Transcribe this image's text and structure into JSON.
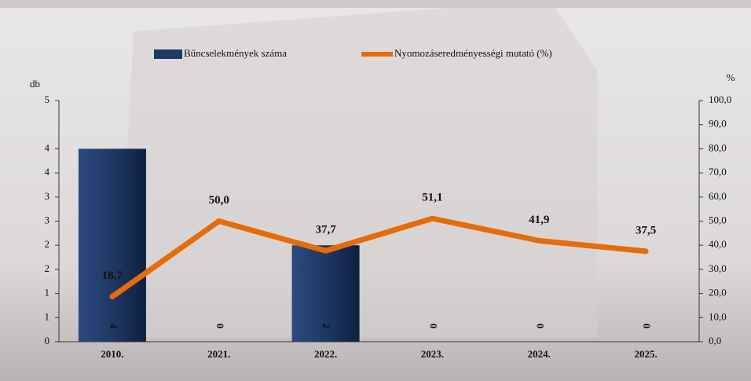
{
  "chart_data": {
    "type": "bar_line",
    "categories": [
      "2010.",
      "2021.",
      "2022.",
      "2023.",
      "2024.",
      "2025."
    ],
    "y_label": "db",
    "y2_label": "%",
    "ylim": [
      0,
      5
    ],
    "yticks": [
      0,
      {
        "value": 0.5,
        "label": "1"
      },
      {
        "value": 1,
        "label": "1"
      },
      {
        "value": 1.5,
        "label": "2"
      },
      {
        "value": 2,
        "label": "2"
      },
      {
        "value": 2.5,
        "label": "3"
      },
      {
        "value": 3,
        "label": "3"
      },
      {
        "value": 3.5,
        "label": "4"
      },
      {
        "value": 4,
        "label": "4"
      },
      5
    ],
    "y2lim": [
      0,
      100
    ],
    "y2ticks": [
      {
        "value": 0,
        "label": "0,0"
      },
      {
        "value": 10,
        "label": "10,0"
      },
      {
        "value": 20,
        "label": "20,0"
      },
      {
        "value": 30,
        "label": "30,0"
      },
      {
        "value": 40,
        "label": "40,0"
      },
      {
        "value": 50,
        "label": "50,0"
      },
      {
        "value": 60,
        "label": "60,0"
      },
      {
        "value": 70,
        "label": "70,0"
      },
      {
        "value": 80,
        "label": "80,0"
      },
      {
        "value": 90,
        "label": "90,0"
      },
      {
        "value": 100,
        "label": "100,0"
      }
    ],
    "series": [
      {
        "name": "Bűncselekmények száma",
        "type": "bar",
        "color": "#1f3864",
        "values": [
          4,
          0,
          2,
          0,
          0,
          0
        ]
      },
      {
        "name": "Nyomozáseredményességi mutató (%)",
        "type": "line",
        "axis": "y2",
        "color": "#e46c0a",
        "values": [
          18.7,
          50.0,
          37.7,
          51.1,
          41.9,
          37.5
        ],
        "value_labels": [
          "18,7",
          "50,0",
          "37,7",
          "51,1",
          "41,9",
          "37,5"
        ]
      }
    ]
  }
}
